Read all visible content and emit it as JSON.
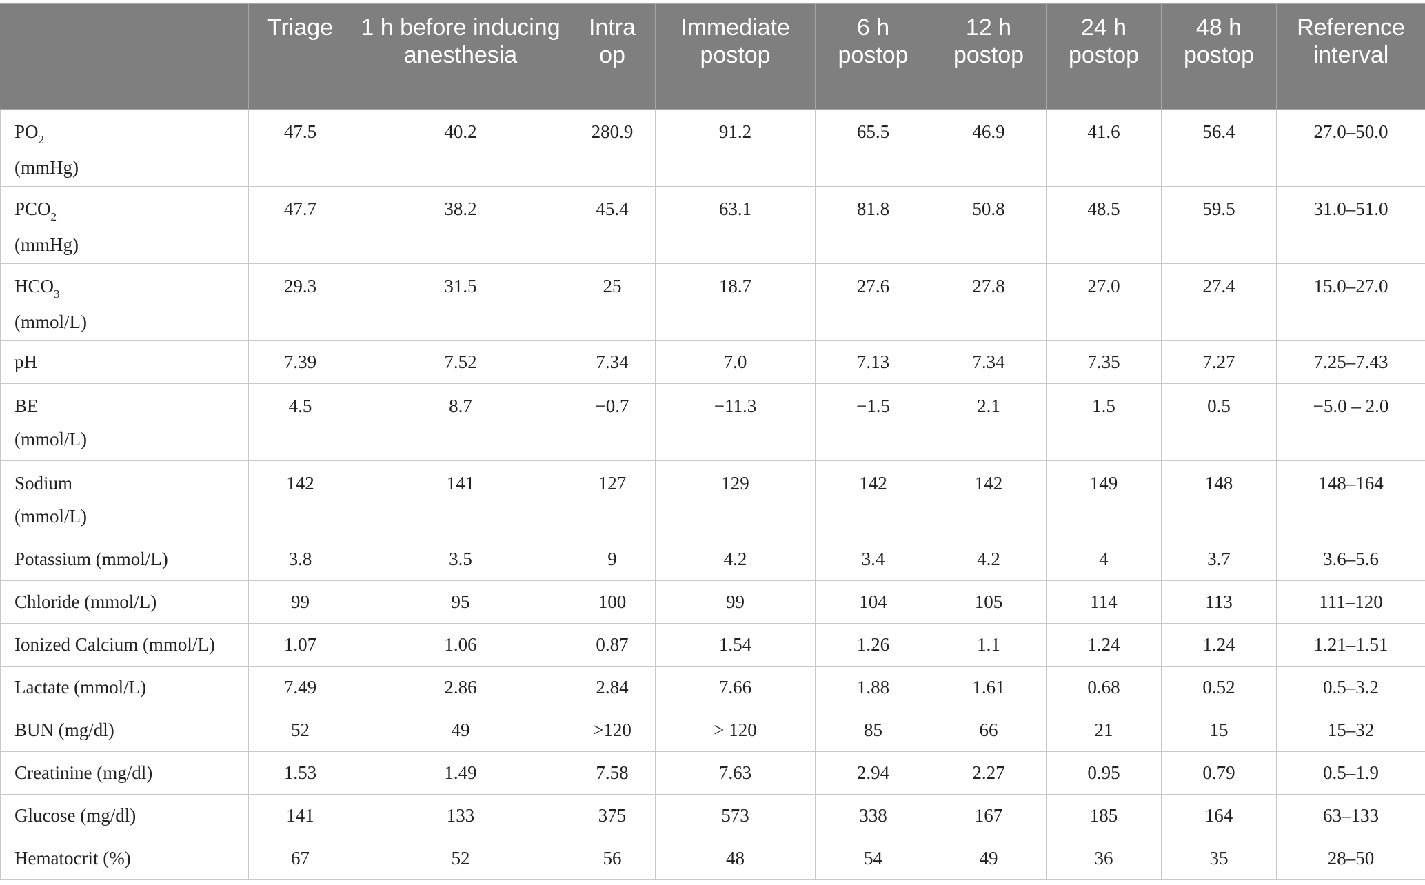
{
  "table": {
    "headers": [
      "",
      "Triage",
      "1 h before inducing anesthesia",
      "Intra op",
      "Immediate postop",
      "6 h postop",
      "12 h postop",
      "24 h postop",
      "48 h postop",
      "Reference interval"
    ],
    "rows": [
      {
        "label": "PO",
        "sub": "2",
        "unit": "(mmHg)",
        "values": [
          "47.5",
          "40.2",
          "280.9",
          "91.2",
          "65.5",
          "46.9",
          "41.6",
          "56.4",
          "27.0–50.0"
        ]
      },
      {
        "label": "PCO",
        "sub": "2",
        "unit": "(mmHg)",
        "values": [
          "47.7",
          "38.2",
          "45.4",
          "63.1",
          "81.8",
          "50.8",
          "48.5",
          "59.5",
          "31.0–51.0"
        ]
      },
      {
        "label": "HCO",
        "sub": "3",
        "unit": "(mmol/L)",
        "values": [
          "29.3",
          "31.5",
          "25",
          "18.7",
          "27.6",
          "27.8",
          "27.0",
          "27.4",
          "15.0–27.0"
        ]
      },
      {
        "label": "pH",
        "sub": "",
        "unit": "",
        "values": [
          "7.39",
          "7.52",
          "7.34",
          "7.0",
          "7.13",
          "7.34",
          "7.35",
          "7.27",
          "7.25–7.43"
        ]
      },
      {
        "label": "BE",
        "sub": "",
        "unit": "(mmol/L)",
        "values": [
          "4.5",
          "8.7",
          "−0.7",
          "−11.3",
          "−1.5",
          "2.1",
          "1.5",
          "0.5",
          "−5.0 – 2.0"
        ]
      },
      {
        "label": "Sodium",
        "sub": "",
        "unit": "(mmol/L)",
        "values": [
          "142",
          "141",
          "127",
          "129",
          "142",
          "142",
          "149",
          "148",
          "148–164"
        ]
      },
      {
        "label": "Potassium (mmol/L)",
        "sub": "",
        "unit": "",
        "values": [
          "3.8",
          "3.5",
          "9",
          "4.2",
          "3.4",
          "4.2",
          "4",
          "3.7",
          "3.6–5.6"
        ]
      },
      {
        "label": "Chloride (mmol/L)",
        "sub": "",
        "unit": "",
        "values": [
          "99",
          "95",
          "100",
          "99",
          "104",
          "105",
          "114",
          "113",
          "111–120"
        ]
      },
      {
        "label": "Ionized Calcium (mmol/L)",
        "sub": "",
        "unit": "",
        "values": [
          "1.07",
          "1.06",
          "0.87",
          "1.54",
          "1.26",
          "1.1",
          "1.24",
          "1.24",
          "1.21–1.51"
        ]
      },
      {
        "label": "Lactate (mmol/L)",
        "sub": "",
        "unit": "",
        "values": [
          "7.49",
          "2.86",
          "2.84",
          "7.66",
          "1.88",
          "1.61",
          "0.68",
          "0.52",
          "0.5–3.2"
        ]
      },
      {
        "label": "BUN (mg/dl)",
        "sub": "",
        "unit": "",
        "values": [
          "52",
          "49",
          ">120",
          "> 120",
          "85",
          "66",
          "21",
          "15",
          "15–32"
        ]
      },
      {
        "label": "Creatinine (mg/dl)",
        "sub": "",
        "unit": "",
        "values": [
          "1.53",
          "1.49",
          "7.58",
          "7.63",
          "2.94",
          "2.27",
          "0.95",
          "0.79",
          "0.5–1.9"
        ]
      },
      {
        "label": "Glucose (mg/dl)",
        "sub": "",
        "unit": "",
        "values": [
          "141",
          "133",
          "375",
          "573",
          "338",
          "167",
          "185",
          "164",
          "63–133"
        ]
      },
      {
        "label": "Hematocrit (%)",
        "sub": "",
        "unit": "",
        "values": [
          "67",
          "52",
          "56",
          "48",
          "54",
          "49",
          "36",
          "35",
          "28–50"
        ]
      }
    ]
  },
  "colors": {
    "header_bg": "#7f7f7f",
    "header_text": "#ffffff",
    "grid": "#c8c8c8",
    "body_text": "#222222"
  }
}
